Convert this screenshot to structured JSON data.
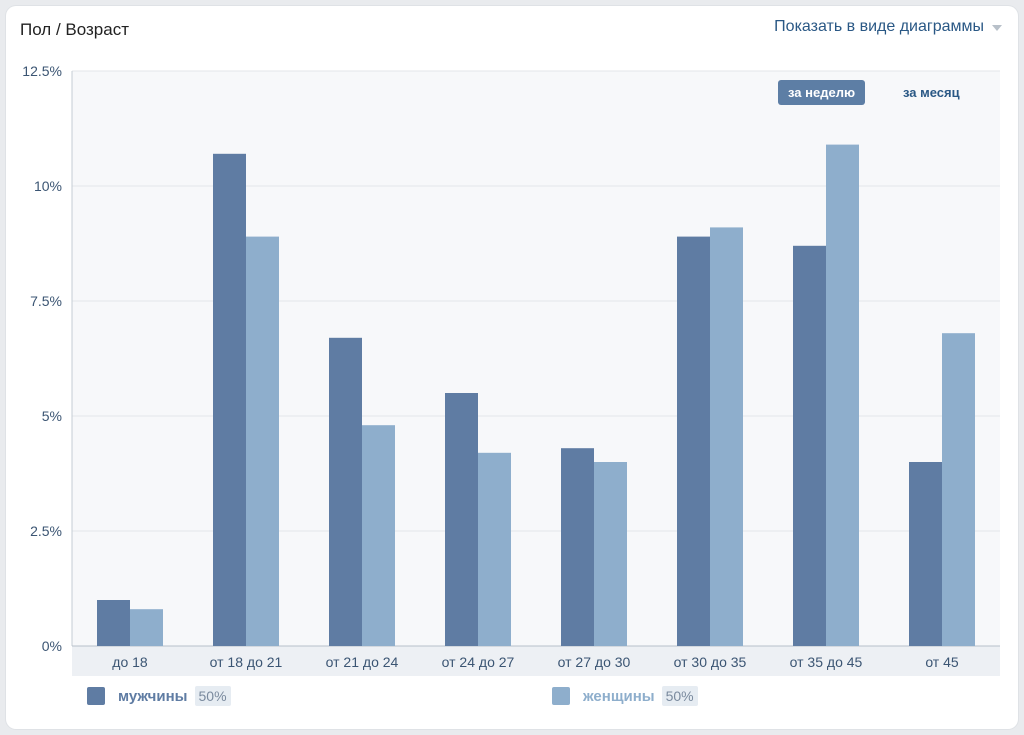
{
  "header": {
    "title": "Пол / Возраст",
    "view_mode_label": "Показать в виде диаграммы"
  },
  "periods": {
    "active": "за неделю",
    "inactive": "за месяц"
  },
  "legend": [
    {
      "name": "мужчины",
      "percent": "50%",
      "color": "#5f7ca3"
    },
    {
      "name": "женщины",
      "percent": "50%",
      "color": "#8eaecc"
    }
  ],
  "chart_data": {
    "type": "bar",
    "categories": [
      "до 18",
      "от 18 до 21",
      "от 21 до 24",
      "от 24 до 27",
      "от 27 до 30",
      "от 30 до 35",
      "от 35 до 45",
      "от 45"
    ],
    "series": [
      {
        "name": "мужчины",
        "color": "#5f7ca3",
        "values": [
          1.0,
          10.7,
          6.7,
          5.5,
          4.3,
          8.9,
          8.7,
          4.0
        ]
      },
      {
        "name": "женщины",
        "color": "#8eaecc",
        "values": [
          0.8,
          8.9,
          4.8,
          4.2,
          4.0,
          9.1,
          10.9,
          6.8
        ]
      }
    ],
    "y_ticks": [
      "0%",
      "2.5%",
      "5%",
      "7.5%",
      "10%",
      "12.5%"
    ],
    "ylim": [
      0,
      12.5
    ],
    "grid": true,
    "legend_position": "bottom"
  }
}
